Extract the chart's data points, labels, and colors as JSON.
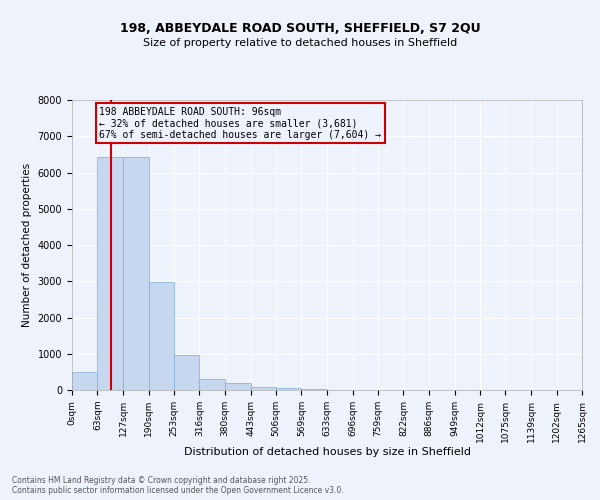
{
  "title_line1": "198, ABBEYDALE ROAD SOUTH, SHEFFIELD, S7 2QU",
  "title_line2": "Size of property relative to detached houses in Sheffield",
  "xlabel": "Distribution of detached houses by size in Sheffield",
  "ylabel": "Number of detached properties",
  "bar_color": "#c5d8f0",
  "bar_edge_color": "#7aadd4",
  "bin_edges": [
    0,
    63,
    127,
    190,
    253,
    316,
    380,
    443,
    506,
    569,
    633,
    696,
    759,
    822,
    886,
    949,
    1012,
    1075,
    1139,
    1202,
    1265
  ],
  "bar_heights": [
    490,
    6420,
    6440,
    2970,
    960,
    310,
    180,
    90,
    45,
    20,
    10,
    5,
    3,
    2,
    1,
    1,
    0,
    0,
    0,
    0
  ],
  "ylim": [
    0,
    8000
  ],
  "yticks": [
    0,
    1000,
    2000,
    3000,
    4000,
    5000,
    6000,
    7000,
    8000
  ],
  "property_size": 96,
  "vline_color": "#cc0000",
  "annotation_text": "198 ABBEYDALE ROAD SOUTH: 96sqm\n← 32% of detached houses are smaller (3,681)\n67% of semi-detached houses are larger (7,604) →",
  "annotation_box_color": "#cc0000",
  "annotation_fontsize": 7.0,
  "background_color": "#eef2fb",
  "grid_color": "#ffffff",
  "footer_text": "Contains HM Land Registry data © Crown copyright and database right 2025.\nContains public sector information licensed under the Open Government Licence v3.0.",
  "tick_labels": [
    "0sqm",
    "63sqm",
    "127sqm",
    "190sqm",
    "253sqm",
    "316sqm",
    "380sqm",
    "443sqm",
    "506sqm",
    "569sqm",
    "633sqm",
    "696sqm",
    "759sqm",
    "822sqm",
    "886sqm",
    "949sqm",
    "1012sqm",
    "1075sqm",
    "1139sqm",
    "1202sqm",
    "1265sqm"
  ]
}
